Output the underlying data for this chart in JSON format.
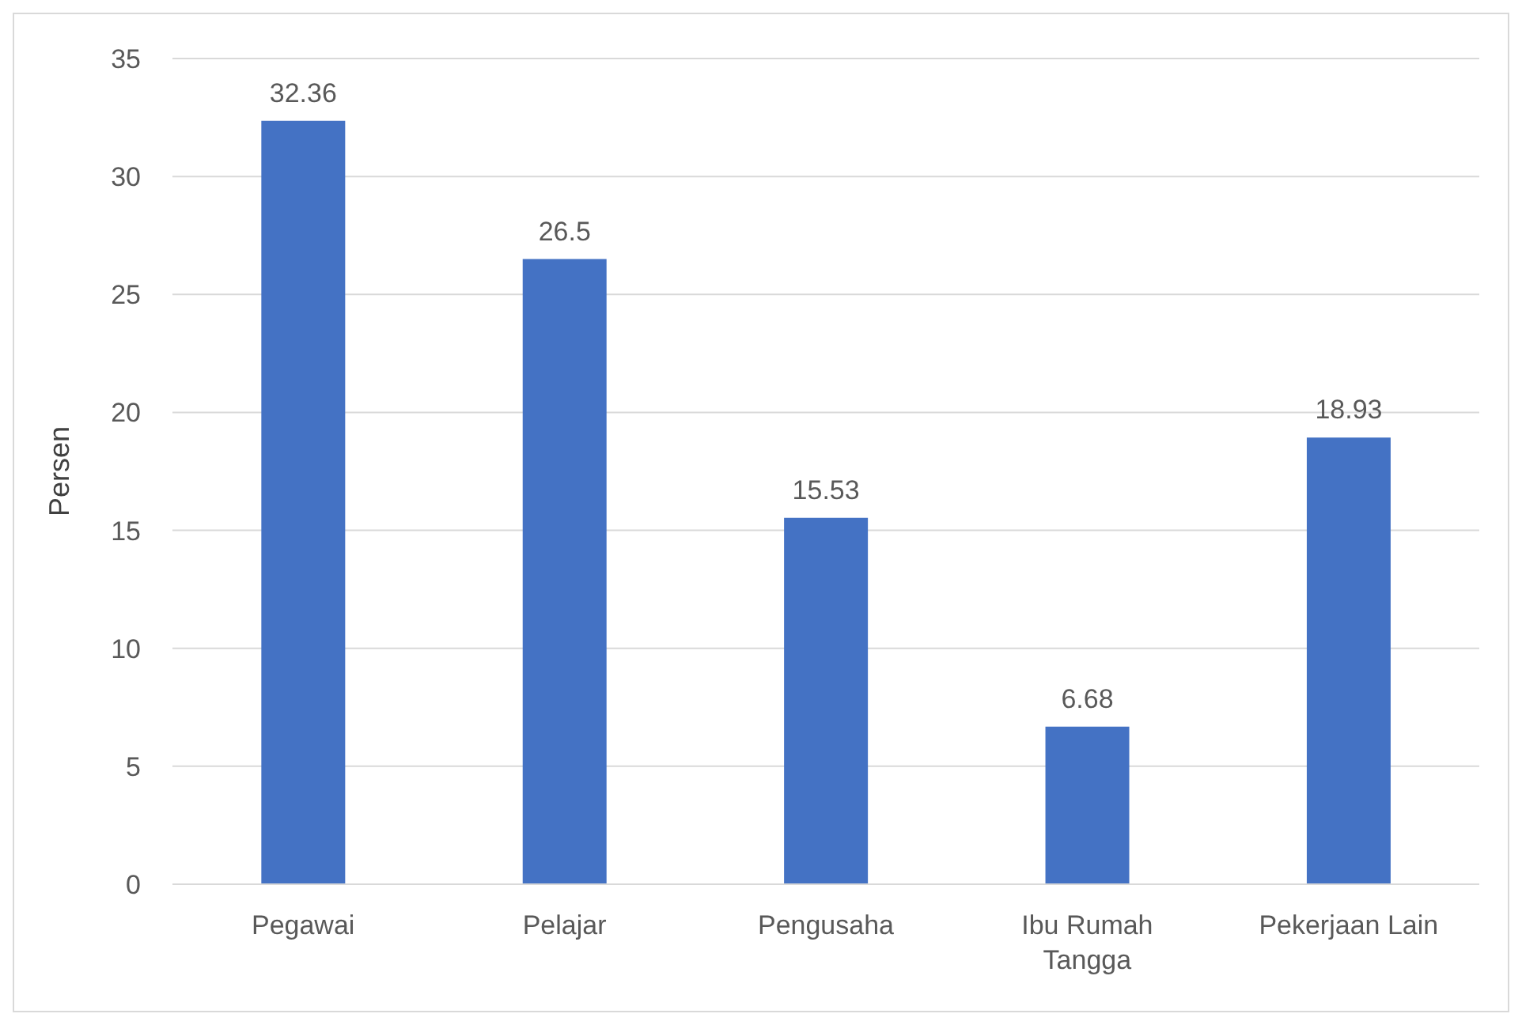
{
  "chart_data": {
    "type": "bar",
    "ylabel": "Persen",
    "categories": [
      "Pegawai",
      "Pelajar",
      "Pengusaha",
      "Ibu Rumah Tangga",
      "Pekerjaan Lain"
    ],
    "values": [
      32.36,
      26.5,
      15.53,
      6.68,
      18.93
    ],
    "color": "#4472c4",
    "ylim": [
      0,
      35
    ],
    "yticks": [
      0,
      5,
      10,
      15,
      20,
      25,
      30,
      35
    ],
    "grid": "y",
    "data_labels": true
  }
}
